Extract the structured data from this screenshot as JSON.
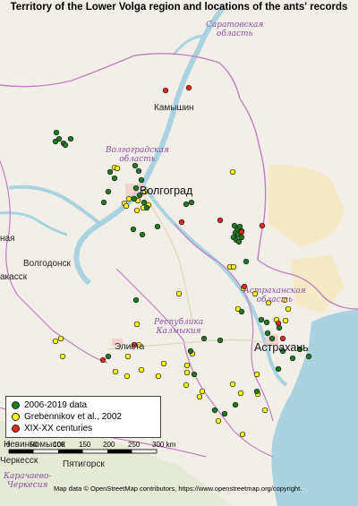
{
  "title": "Territory of the Lower Volga region and locations of the ants' records",
  "colors": {
    "series_2006_2019": "#1f7a1f",
    "series_grebennikov": "#ffff00",
    "series_historic": "#e8281c",
    "water": "#aad3df",
    "land": "#f2efe9",
    "boundary": "#c17fc1",
    "sand": "#f5e9c6"
  },
  "places": {
    "saratov_oblast": "Саратовская\nобласть",
    "kamyshin": "Камышин",
    "volgograd_oblast": "Волгоградская\nобласть",
    "volgograd": "Волгоград",
    "volgodonsk": "Волгодонск",
    "astrakhan_oblast": "Астраханская\nобласть",
    "kalmykia": "Республика\nКалмыкия",
    "elista": "Элиста",
    "astrakhan": "Астрахань",
    "nevinnomyssk": "Невинномысск",
    "cherkessk": "Черкесск",
    "pyatigorsk": "Пятигорск",
    "karachay": "Карачаево-\nЧеркесия",
    "rostov_edge": "ная",
    "kazakhstan_edge": "акасск"
  },
  "legend": {
    "items": [
      {
        "label": "2006-2019 data",
        "color": "#1f7a1f"
      },
      {
        "label": "Grebennikov et al., 2002",
        "color": "#ffff00"
      },
      {
        "label": "XIX-XX centuries",
        "color": "#e8281c"
      }
    ]
  },
  "scale": {
    "ticks": [
      "0",
      "50",
      "100",
      "150",
      "200",
      "250",
      "300 km"
    ]
  },
  "attribution": "Map data © OpenStreetMap contributors, https://www.openstreetmap.org/copyright."
}
